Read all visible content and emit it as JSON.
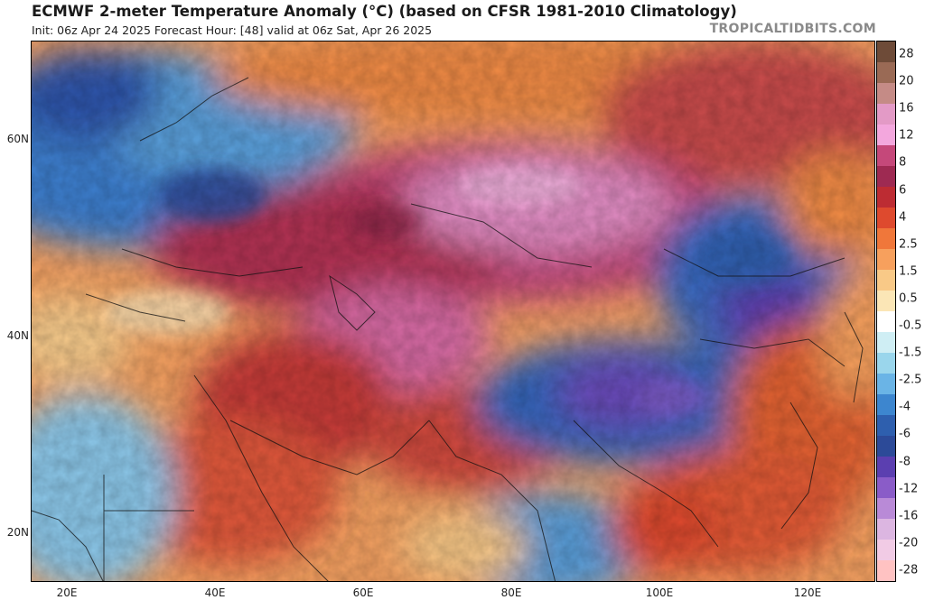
{
  "header": {
    "title": "ECMWF 2-meter Temperature Anomaly (°C) (based on CFSR 1981-2010 Climatology)",
    "subtitle": "Init: 06z Apr 24 2025   Forecast Hour: [48]   valid at 06z Sat, Apr 26 2025",
    "brand": "TROPICALTIDBITS.COM"
  },
  "axes": {
    "lat_labels": [
      "60N",
      "40N",
      "20N"
    ],
    "lon_labels": [
      "20E",
      "40E",
      "60E",
      "80E",
      "100E",
      "120E"
    ]
  },
  "colorbar": {
    "labels": [
      "28",
      "20",
      "16",
      "12",
      "8",
      "6",
      "4",
      "2.5",
      "1.5",
      "0.5",
      "-0.5",
      "-1.5",
      "-2.5",
      "-4",
      "-6",
      "-8",
      "-12",
      "-16",
      "-20",
      "-28"
    ],
    "colors": [
      "#6e4b38",
      "#9a6a55",
      "#c58b86",
      "#e39ac6",
      "#f3a7dd",
      "#c5487a",
      "#9e2a52",
      "#bd2c33",
      "#de4a2e",
      "#f0773a",
      "#f7a05d",
      "#f9c987",
      "#fbe6b6",
      "#ffffff",
      "#cfeef4",
      "#9ad6ec",
      "#6ab4e6",
      "#3d86cf",
      "#2e5fae",
      "#2c4a98",
      "#5b3fb0",
      "#8a5cc8",
      "#b98ad7",
      "#dcb6e1",
      "#f1cbe5",
      "#ffc2c2"
    ]
  },
  "icons": {
    "map": "temperature-anomaly-map"
  }
}
